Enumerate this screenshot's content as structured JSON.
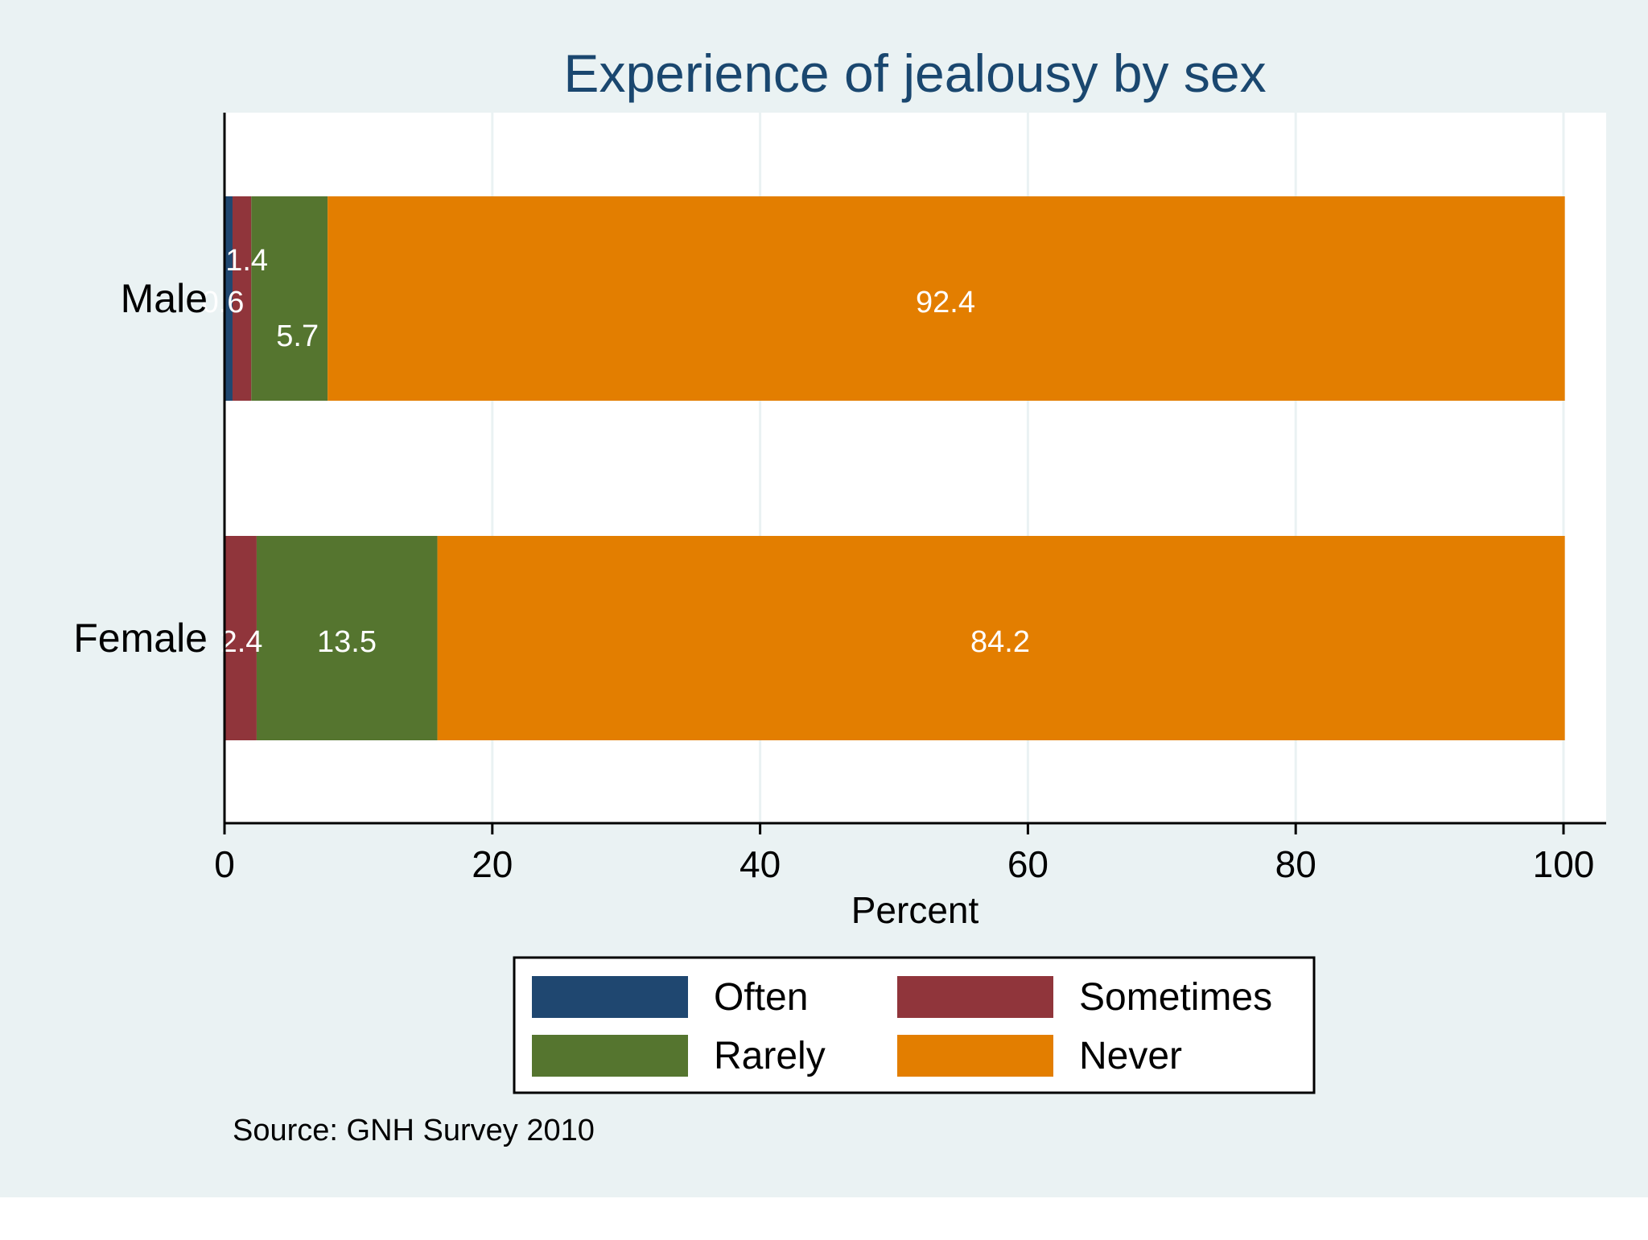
{
  "chart_data": {
    "type": "bar",
    "orientation": "horizontal",
    "stacked": true,
    "title": "Experience of jealousy by sex",
    "xlabel": "Percent",
    "ylabel": "",
    "xlim": [
      0,
      100
    ],
    "xticks": [
      0,
      20,
      40,
      60,
      80,
      100
    ],
    "grid": true,
    "categories": [
      "Male",
      "Female"
    ],
    "series": [
      {
        "name": "Often",
        "color": "#1f4770",
        "values": [
          0.6,
          0.0
        ],
        "labels": [
          "0.6",
          ""
        ]
      },
      {
        "name": "Sometimes",
        "color": "#90353b",
        "values": [
          1.4,
          2.4
        ],
        "labels": [
          "1.4",
          "2.4"
        ]
      },
      {
        "name": "Rarely",
        "color": "#55752f",
        "values": [
          5.7,
          13.5
        ],
        "labels": [
          "5.7",
          "13.5"
        ]
      },
      {
        "name": "Never",
        "color": "#e37e00",
        "values": [
          92.4,
          84.2
        ],
        "labels": [
          "92.4",
          "84.2"
        ]
      }
    ],
    "legend": {
      "position": "bottom",
      "columns": 2
    },
    "note": "Source: GNH Survey 2010"
  },
  "colors": {
    "outer_background": "#eaf2f3",
    "plot_background": "#ffffff",
    "grid": "#eaf2f3",
    "title": "#1a476f",
    "text": "#000000",
    "bar_label": "#ffffff"
  }
}
